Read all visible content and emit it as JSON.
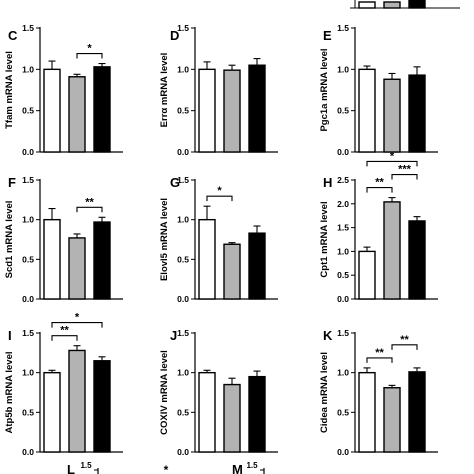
{
  "colors": {
    "wt": "#ffffff",
    "group2": "#b3b3b3",
    "group3": "#000000",
    "axis": "#000000"
  },
  "chart_data": [
    {
      "panel": "C",
      "type": "bar",
      "ylabel": "Tfam mRNA level",
      "ylim": [
        0,
        1.5
      ],
      "yticks": [
        0.0,
        0.5,
        1.0,
        1.5
      ],
      "ytick_labels": [
        "0.0",
        "0.5",
        "1.0",
        "1.5"
      ],
      "values": [
        1.0,
        0.91,
        1.03
      ],
      "errors": [
        0.1,
        0.03,
        0.04
      ],
      "significance": [
        {
          "from": 1,
          "to": 2,
          "label": "*"
        }
      ]
    },
    {
      "panel": "D",
      "type": "bar",
      "ylabel": "Errα mRNA level",
      "ylim": [
        0,
        1.5
      ],
      "yticks": [
        0.0,
        0.5,
        1.0,
        1.5
      ],
      "ytick_labels": [
        "0.0",
        "0.5",
        "1.0",
        "1.5"
      ],
      "values": [
        1.0,
        0.99,
        1.05
      ],
      "errors": [
        0.09,
        0.06,
        0.08
      ],
      "significance": []
    },
    {
      "panel": "E",
      "type": "bar",
      "ylabel": "Pgc1a mRNA level",
      "ylim": [
        0,
        1.5
      ],
      "yticks": [
        0.0,
        0.5,
        1.0,
        1.5
      ],
      "ytick_labels": [
        "0.0",
        "0.5",
        "1.0",
        "1.5"
      ],
      "values": [
        1.0,
        0.88,
        0.93
      ],
      "errors": [
        0.04,
        0.07,
        0.1
      ],
      "significance": []
    },
    {
      "panel": "F",
      "type": "bar",
      "ylabel": "Scd1 mRNA level",
      "ylim": [
        0,
        1.5
      ],
      "yticks": [
        0.0,
        0.5,
        1.0,
        1.5
      ],
      "ytick_labels": [
        "0.0",
        "0.5",
        "1.0",
        "1.5"
      ],
      "values": [
        1.0,
        0.77,
        0.97
      ],
      "errors": [
        0.14,
        0.05,
        0.06
      ],
      "significance": [
        {
          "from": 1,
          "to": 2,
          "label": "**"
        }
      ]
    },
    {
      "panel": "G",
      "type": "bar",
      "ylabel": "Elovl5 mRNA level",
      "ylim": [
        0,
        1.5
      ],
      "yticks": [
        0.0,
        0.5,
        1.0,
        1.5
      ],
      "ytick_labels": [
        "0.0",
        "0.5",
        "1.0",
        "1.5"
      ],
      "values": [
        1.0,
        0.69,
        0.83
      ],
      "errors": [
        0.17,
        0.02,
        0.09
      ],
      "significance": [
        {
          "from": 0,
          "to": 1,
          "label": "*"
        }
      ]
    },
    {
      "panel": "H",
      "type": "bar",
      "ylabel": "Cpt1 mRNA level",
      "ylim": [
        0,
        2.5
      ],
      "yticks": [
        0.0,
        0.5,
        1.0,
        1.5,
        2.0,
        2.5
      ],
      "ytick_labels": [
        "0.0",
        "0.5",
        "1.0",
        "1.5",
        "2.0",
        "2.5"
      ],
      "values": [
        1.0,
        2.04,
        1.64
      ],
      "errors": [
        0.09,
        0.09,
        0.09
      ],
      "significance": [
        {
          "from": 0,
          "to": 1,
          "label": "**"
        },
        {
          "from": 1,
          "to": 2,
          "label": "***"
        },
        {
          "from": 0,
          "to": 2,
          "label": "*"
        }
      ]
    },
    {
      "panel": "I",
      "type": "bar",
      "ylabel": "Atp5b mRNA level",
      "ylim": [
        0,
        1.5
      ],
      "yticks": [
        0.0,
        0.5,
        1.0,
        1.5
      ],
      "ytick_labels": [
        "0.0",
        "0.5",
        "1.0",
        "1.5"
      ],
      "values": [
        1.0,
        1.28,
        1.15
      ],
      "errors": [
        0.03,
        0.06,
        0.05
      ],
      "significance": [
        {
          "from": 0,
          "to": 1,
          "label": "**"
        },
        {
          "from": 0,
          "to": 2,
          "label": "*"
        }
      ]
    },
    {
      "panel": "J",
      "type": "bar",
      "ylabel": "COXIV mRNA level",
      "ylim": [
        0,
        1.5
      ],
      "yticks": [
        0.0,
        0.5,
        1.0,
        1.5
      ],
      "ytick_labels": [
        "0.0",
        "0.5",
        "1.0",
        "1.5"
      ],
      "values": [
        1.0,
        0.85,
        0.95
      ],
      "errors": [
        0.03,
        0.08,
        0.07
      ],
      "significance": []
    },
    {
      "panel": "K",
      "type": "bar",
      "ylabel": "Cidea mRNA level",
      "ylim": [
        0,
        1.5
      ],
      "yticks": [
        0.0,
        0.5,
        1.0,
        1.5
      ],
      "ytick_labels": [
        "0.0",
        "0.5",
        "1.0",
        "1.5"
      ],
      "values": [
        1.0,
        0.81,
        1.01
      ],
      "errors": [
        0.06,
        0.03,
        0.05
      ],
      "significance": [
        {
          "from": 0,
          "to": 1,
          "label": "**"
        },
        {
          "from": 1,
          "to": 2,
          "label": "**"
        }
      ]
    }
  ],
  "partial_panels": [
    {
      "panel": "L",
      "ytick_top": "1.5",
      "marker": "*"
    },
    {
      "panel": "M",
      "ytick_top": "1.5"
    }
  ]
}
